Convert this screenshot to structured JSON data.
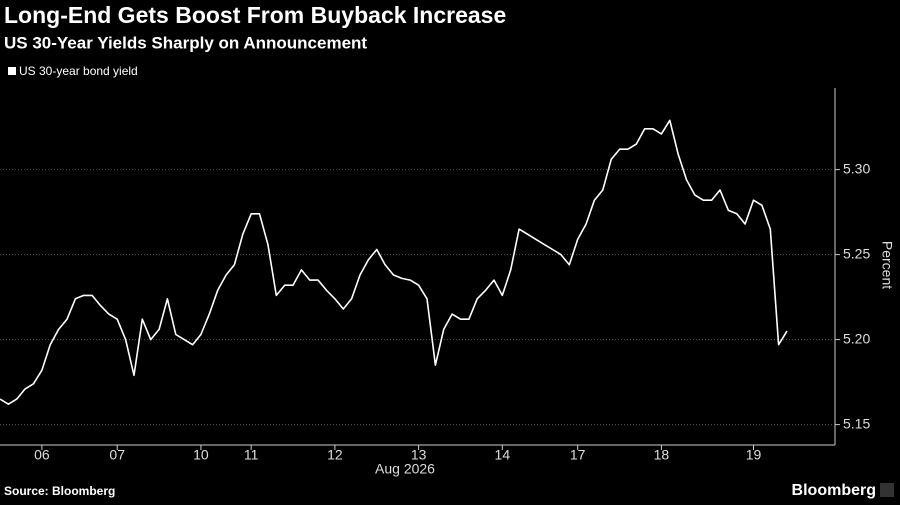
{
  "chart_data": {
    "type": "line",
    "title": "Long-End Gets Boost From Buyback Increase",
    "subtitle": "US 30-Year Yields Sharply on Announcement",
    "x_label": "Aug 2026",
    "y_label": "Percent",
    "source": "Source: Bloomberg",
    "brand": "Bloomberg",
    "grid": true,
    "legend": "top-left",
    "categories": [
      null,
      null,
      null,
      null,
      null,
      "06",
      null,
      null,
      null,
      null,
      null,
      null,
      null,
      null,
      "07",
      null,
      null,
      null,
      null,
      null,
      null,
      null,
      null,
      null,
      "10",
      null,
      null,
      null,
      null,
      null,
      "11",
      null,
      null,
      null,
      null,
      null,
      null,
      null,
      null,
      null,
      "12",
      null,
      null,
      null,
      null,
      null,
      null,
      null,
      null,
      null,
      "13",
      null,
      null,
      null,
      null,
      null,
      null,
      null,
      null,
      null,
      "14",
      null,
      null,
      null,
      null,
      null,
      null,
      null,
      null,
      "17",
      null,
      null,
      null,
      null,
      null,
      null,
      null,
      null,
      null,
      "18",
      null,
      null,
      null,
      null,
      null,
      null,
      null,
      null,
      null,
      null,
      "19",
      null,
      null,
      null,
      null
    ],
    "series": [
      {
        "name": "US 30-year bond yield",
        "color": "#ffffff",
        "values": [
          5.165,
          5.162,
          5.165,
          5.171,
          5.174,
          5.182,
          5.197,
          5.206,
          5.212,
          5.224,
          5.226,
          5.226,
          5.22,
          5.215,
          5.212,
          5.2,
          5.179,
          5.212,
          5.2,
          5.206,
          5.224,
          5.203,
          5.2,
          5.197,
          5.203,
          5.215,
          5.229,
          5.238,
          5.244,
          5.262,
          5.274,
          5.274,
          5.256,
          5.226,
          5.232,
          5.232,
          5.241,
          5.235,
          5.235,
          5.229,
          5.224,
          5.218,
          5.224,
          5.238,
          5.247,
          5.253,
          5.244,
          5.238,
          5.236,
          5.235,
          5.232,
          5.224,
          5.185,
          5.206,
          5.215,
          5.212,
          5.212,
          5.224,
          5.229,
          5.235,
          5.226,
          5.241,
          5.265,
          5.262,
          5.259,
          5.256,
          5.253,
          5.25,
          5.244,
          5.259,
          5.268,
          5.282,
          5.288,
          5.306,
          5.312,
          5.312,
          5.315,
          5.324,
          5.324,
          5.321,
          5.329,
          5.309,
          5.294,
          5.285,
          5.282,
          5.282,
          5.288,
          5.276,
          5.274,
          5.268,
          5.282,
          5.279,
          5.265,
          5.197,
          5.205
        ]
      }
    ],
    "ylim": [
      5.138,
      5.348
    ],
    "yticks": [
      5.15,
      {
        "value": 5.2,
        "label": "5.20"
      },
      5.25,
      {
        "value": 5.3,
        "label": "5.30"
      }
    ]
  }
}
